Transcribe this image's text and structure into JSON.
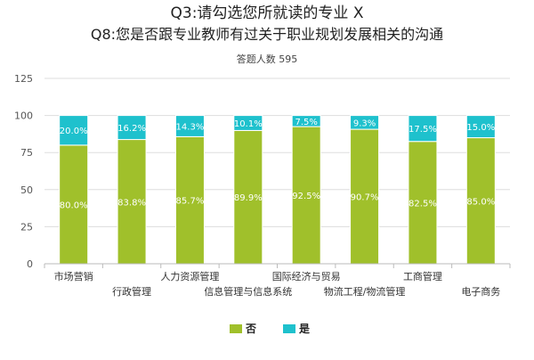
{
  "chart_data": {
    "type": "bar",
    "stacked": true,
    "title_lines": [
      "Q3:请勾选您所就读的专业 X",
      "Q8:您是否跟专业教师有过关于职业规划发展相关的沟通"
    ],
    "subtitle": "答题人数 595",
    "categories": [
      "市场营销",
      "行政管理",
      "人力资源管理",
      "信息管理与信息系统",
      "国际经济与贸易",
      "物流工程/物流管理",
      "工商管理",
      "电子商务"
    ],
    "series": [
      {
        "name": "否",
        "color": "#a0c02b",
        "values": [
          80.0,
          83.8,
          85.7,
          89.9,
          92.5,
          90.7,
          82.5,
          85.0
        ],
        "labels": [
          "80.0%",
          "83.8%",
          "85.7%",
          "89.9%",
          "92.5%",
          "90.7%",
          "82.5%",
          "85.0%"
        ]
      },
      {
        "name": "是",
        "color": "#1ec1cd",
        "values": [
          20.0,
          16.2,
          14.3,
          10.1,
          7.5,
          9.3,
          17.5,
          15.0
        ],
        "labels": [
          "20.0%",
          "16.2%",
          "14.3%",
          "10.1%",
          "7.5%",
          "9.3%",
          "17.5%",
          "15.0%"
        ]
      }
    ],
    "ylim": [
      0,
      125
    ],
    "yticks": [
      0,
      25,
      50,
      75,
      100,
      125
    ],
    "grid": true,
    "legend_position": "bottom"
  }
}
